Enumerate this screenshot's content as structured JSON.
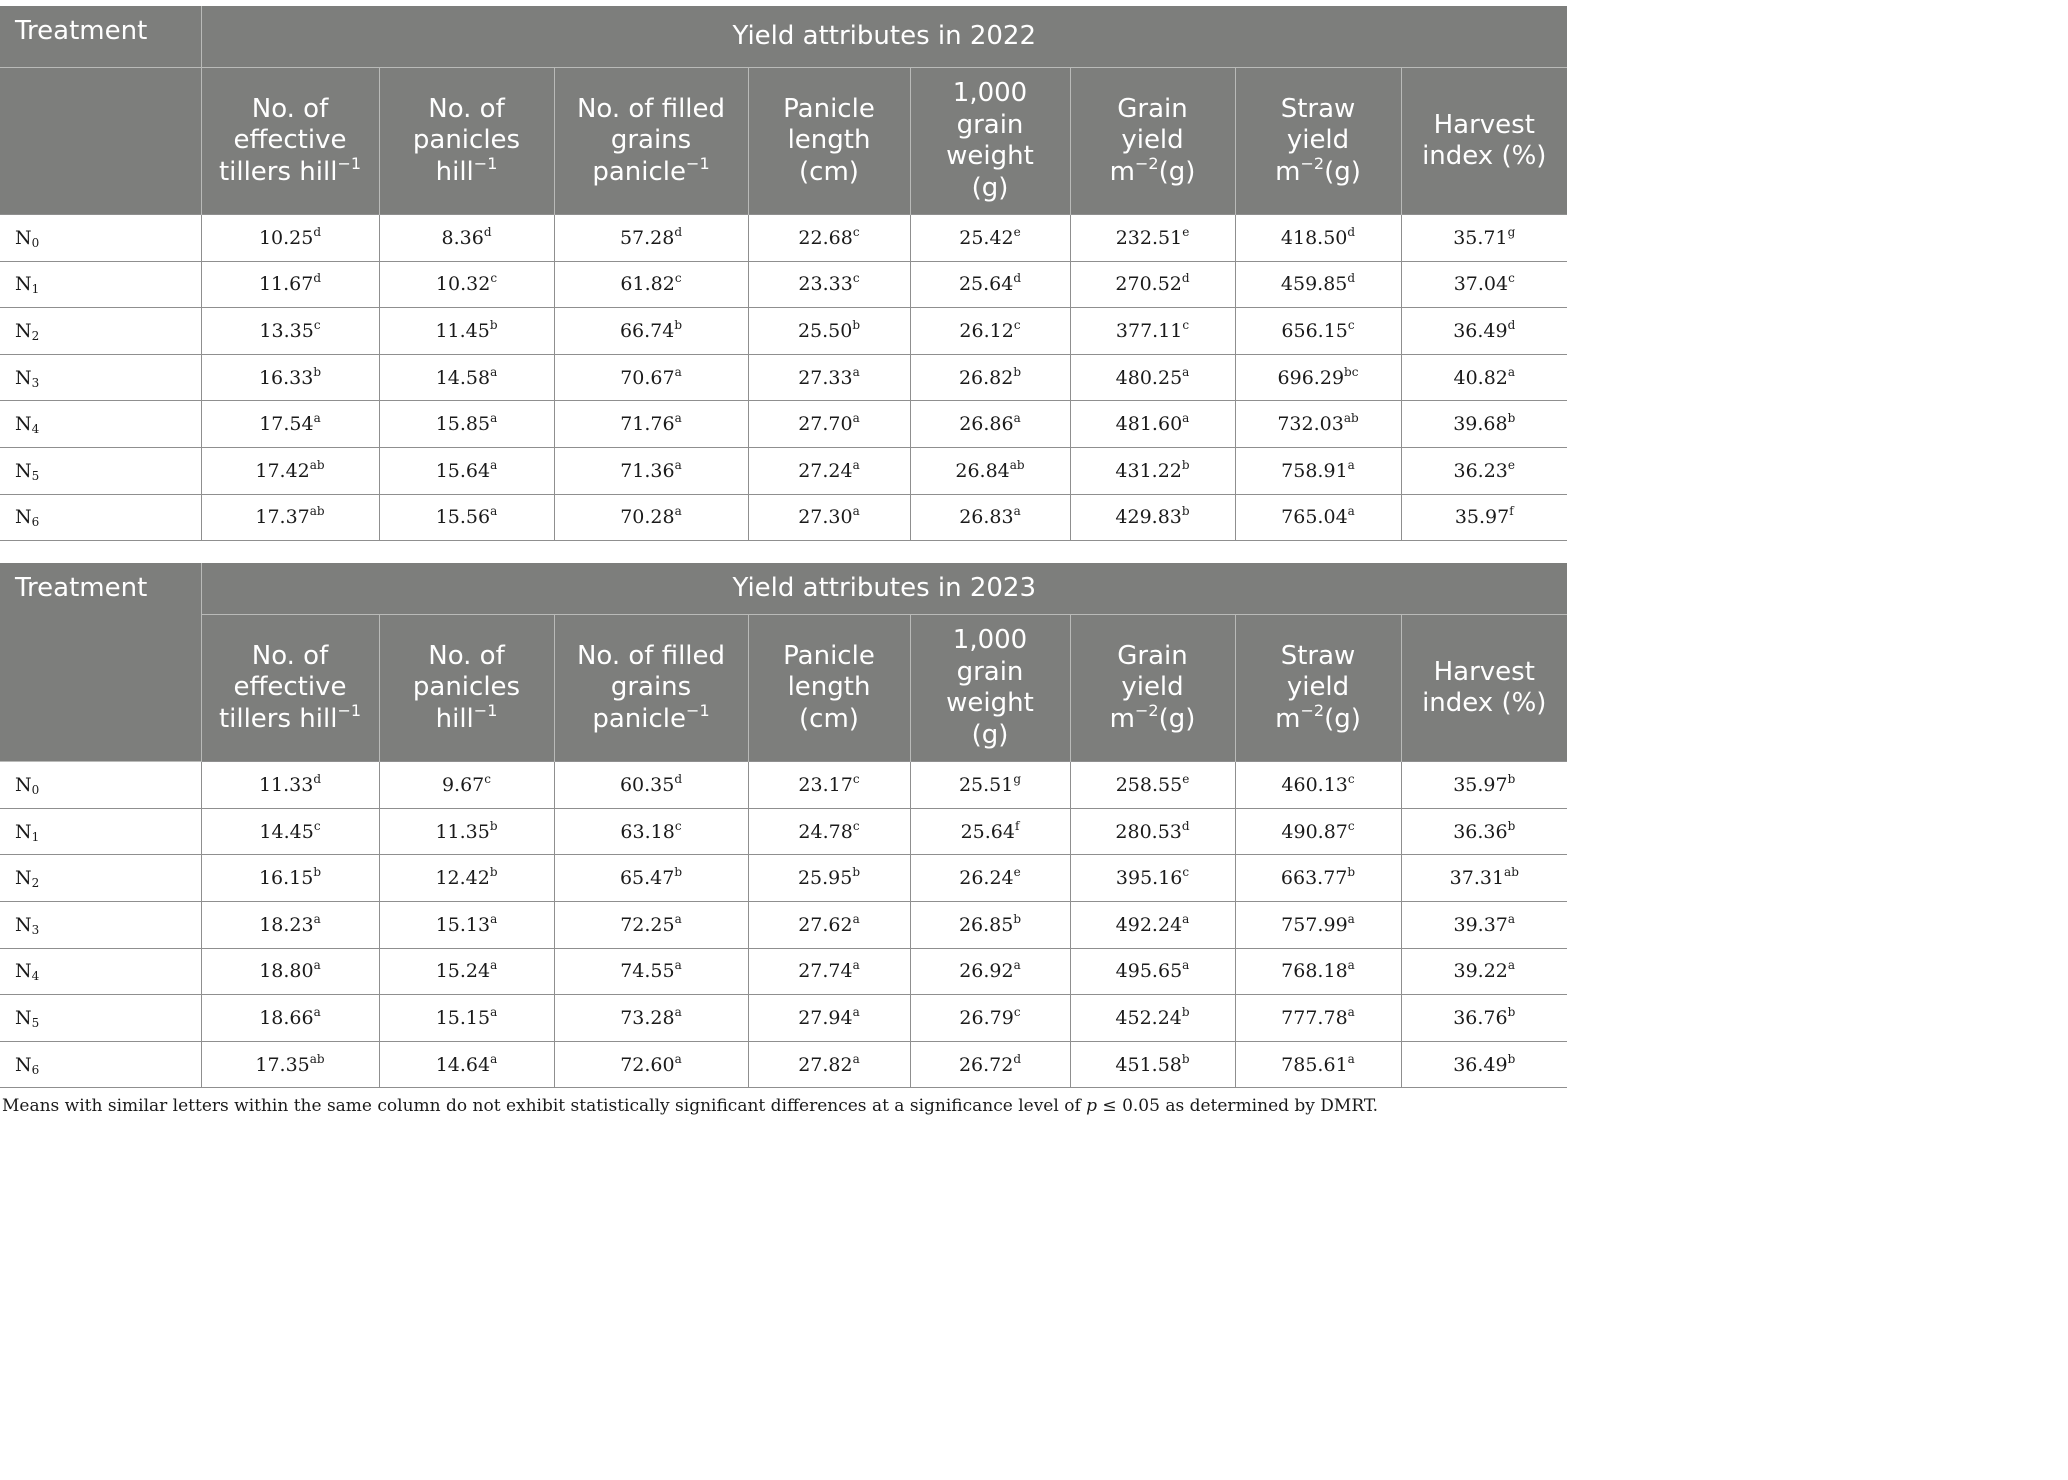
{
  "header": {
    "treatment": "Treatment",
    "columns": [
      {
        "l1": "No. of",
        "l2": "effective",
        "l3": "tillers hill",
        "sup": "−1"
      },
      {
        "l1": "No. of",
        "l2": "panicles",
        "l3": "hill",
        "sup": "−1"
      },
      {
        "l1": "No. of filled",
        "l2": "grains",
        "l3": "panicle",
        "sup": "−1"
      },
      {
        "l1": "Panicle",
        "l2": "length",
        "l3": "(cm)"
      },
      {
        "l1": "1,000",
        "l2": "grain",
        "l3": "weight",
        "l4": "(g)"
      },
      {
        "l1": "Grain",
        "l2": "yield",
        "l3a": "m",
        "sup": "−2",
        "l3b": "(g)"
      },
      {
        "l1": "Straw",
        "l2": "yield",
        "l3a": "m",
        "sup": "−2",
        "l3b": "(g)"
      },
      {
        "l1": "Harvest",
        "l2": "index (%)"
      }
    ]
  },
  "tables": [
    {
      "title": "Yield attributes in 2022",
      "rows": [
        {
          "base": "N",
          "sub": "0",
          "cells": [
            [
              "10.25",
              "d"
            ],
            [
              "8.36",
              "d"
            ],
            [
              "57.28",
              "d"
            ],
            [
              "22.68",
              "c"
            ],
            [
              "25.42",
              "e"
            ],
            [
              "232.51",
              "e"
            ],
            [
              "418.50",
              "d"
            ],
            [
              "35.71",
              "g"
            ]
          ]
        },
        {
          "base": "N",
          "sub": "1",
          "cells": [
            [
              "11.67",
              "d"
            ],
            [
              "10.32",
              "c"
            ],
            [
              "61.82",
              "c"
            ],
            [
              "23.33",
              "c"
            ],
            [
              "25.64",
              "d"
            ],
            [
              "270.52",
              "d"
            ],
            [
              "459.85",
              "d"
            ],
            [
              "37.04",
              "c"
            ]
          ]
        },
        {
          "base": "N",
          "sub": "2",
          "cells": [
            [
              "13.35",
              "c"
            ],
            [
              "11.45",
              "b"
            ],
            [
              "66.74",
              "b"
            ],
            [
              "25.50",
              "b"
            ],
            [
              "26.12",
              "c"
            ],
            [
              "377.11",
              "c"
            ],
            [
              "656.15",
              "c"
            ],
            [
              "36.49",
              "d"
            ]
          ]
        },
        {
          "base": "N",
          "sub": "3",
          "cells": [
            [
              "16.33",
              "b"
            ],
            [
              "14.58",
              "a"
            ],
            [
              "70.67",
              "a"
            ],
            [
              "27.33",
              "a"
            ],
            [
              "26.82",
              "b"
            ],
            [
              "480.25",
              "a"
            ],
            [
              "696.29",
              "bc"
            ],
            [
              "40.82",
              "a"
            ]
          ]
        },
        {
          "base": "N",
          "sub": "4",
          "cells": [
            [
              "17.54",
              "a"
            ],
            [
              "15.85",
              "a"
            ],
            [
              "71.76",
              "a"
            ],
            [
              "27.70",
              "a"
            ],
            [
              "26.86",
              "a"
            ],
            [
              "481.60",
              "a"
            ],
            [
              "732.03",
              "ab"
            ],
            [
              "39.68",
              "b"
            ]
          ]
        },
        {
          "base": "N",
          "sub": "5",
          "cells": [
            [
              "17.42",
              "ab"
            ],
            [
              "15.64",
              "a"
            ],
            [
              "71.36",
              "a"
            ],
            [
              "27.24",
              "a"
            ],
            [
              "26.84",
              "ab"
            ],
            [
              "431.22",
              "b"
            ],
            [
              "758.91",
              "a"
            ],
            [
              "36.23",
              "e"
            ]
          ]
        },
        {
          "base": "N",
          "sub": "6",
          "cells": [
            [
              "17.37",
              "ab"
            ],
            [
              "15.56",
              "a"
            ],
            [
              "70.28",
              "a"
            ],
            [
              "27.30",
              "a"
            ],
            [
              "26.83",
              "a"
            ],
            [
              "429.83",
              "b"
            ],
            [
              "765.04",
              "a"
            ],
            [
              "35.97",
              "f"
            ]
          ]
        }
      ]
    },
    {
      "title": "Yield attributes in 2023",
      "rows": [
        {
          "base": "N",
          "sub": "0",
          "cells": [
            [
              "11.33",
              "d"
            ],
            [
              "9.67",
              "c"
            ],
            [
              "60.35",
              "d"
            ],
            [
              "23.17",
              "c"
            ],
            [
              "25.51",
              "g"
            ],
            [
              "258.55",
              "e"
            ],
            [
              "460.13",
              "c"
            ],
            [
              "35.97",
              "b"
            ]
          ]
        },
        {
          "base": "N",
          "sub": "1",
          "cells": [
            [
              "14.45",
              "c"
            ],
            [
              "11.35",
              "b"
            ],
            [
              "63.18",
              "c"
            ],
            [
              "24.78",
              "c"
            ],
            [
              "25.64",
              "f"
            ],
            [
              "280.53",
              "d"
            ],
            [
              "490.87",
              "c"
            ],
            [
              "36.36",
              "b"
            ]
          ]
        },
        {
          "base": "N",
          "sub": "2",
          "cells": [
            [
              "16.15",
              "b"
            ],
            [
              "12.42",
              "b"
            ],
            [
              "65.47",
              "b"
            ],
            [
              "25.95",
              "b"
            ],
            [
              "26.24",
              "e"
            ],
            [
              "395.16",
              "c"
            ],
            [
              "663.77",
              "b"
            ],
            [
              "37.31",
              "ab"
            ]
          ]
        },
        {
          "base": "N",
          "sub": "3",
          "cells": [
            [
              "18.23",
              "a"
            ],
            [
              "15.13",
              "a"
            ],
            [
              "72.25",
              "a"
            ],
            [
              "27.62",
              "a"
            ],
            [
              "26.85",
              "b"
            ],
            [
              "492.24",
              "a"
            ],
            [
              "757.99",
              "a"
            ],
            [
              "39.37",
              "a"
            ]
          ]
        },
        {
          "base": "N",
          "sub": "4",
          "cells": [
            [
              "18.80",
              "a"
            ],
            [
              "15.24",
              "a"
            ],
            [
              "74.55",
              "a"
            ],
            [
              "27.74",
              "a"
            ],
            [
              "26.92",
              "a"
            ],
            [
              "495.65",
              "a"
            ],
            [
              "768.18",
              "a"
            ],
            [
              "39.22",
              "a"
            ]
          ]
        },
        {
          "base": "N",
          "sub": "5",
          "cells": [
            [
              "18.66",
              "a"
            ],
            [
              "15.15",
              "a"
            ],
            [
              "73.28",
              "a"
            ],
            [
              "27.94",
              "a"
            ],
            [
              "26.79",
              "c"
            ],
            [
              "452.24",
              "b"
            ],
            [
              "777.78",
              "a"
            ],
            [
              "36.76",
              "b"
            ]
          ]
        },
        {
          "base": "N",
          "sub": "6",
          "cells": [
            [
              "17.35",
              "ab"
            ],
            [
              "14.64",
              "a"
            ],
            [
              "72.60",
              "a"
            ],
            [
              "27.82",
              "a"
            ],
            [
              "26.72",
              "d"
            ],
            [
              "451.58",
              "b"
            ],
            [
              "785.61",
              "a"
            ],
            [
              "36.49",
              "b"
            ]
          ]
        }
      ]
    }
  ],
  "footnote": {
    "pre": "Means with similar letters within the same column do not exhibit statistically significant differences at a significance level of ",
    "p": "p",
    "post": " ≤ 0.05 as determined by DMRT."
  }
}
